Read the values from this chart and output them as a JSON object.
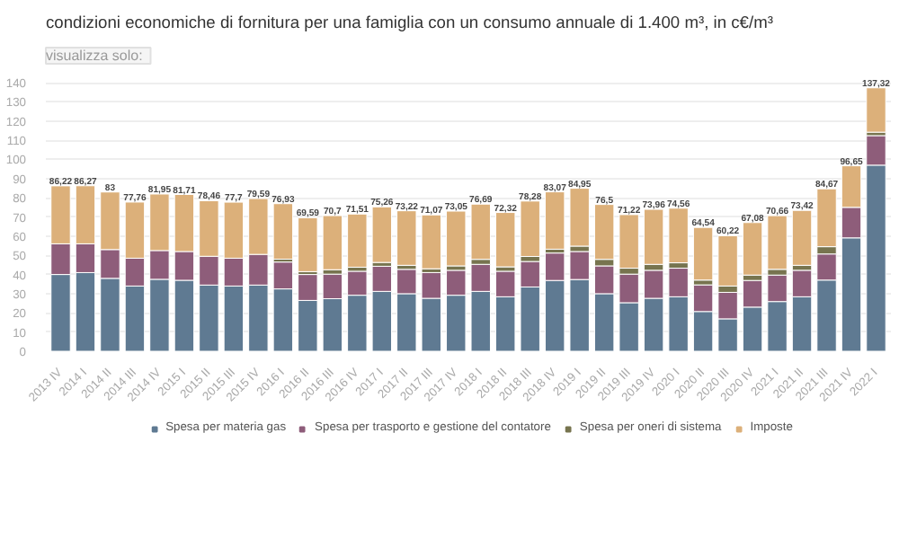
{
  "chart_data": {
    "type": "bar",
    "stacked": true,
    "title": "condizioni economiche di fornitura per una famiglia con un consumo annuale di 1.400 m³, in c€/m³",
    "annotations": [
      "visualizza solo:"
    ],
    "categories": [
      "2013 IV",
      "2014 I",
      "2014 II",
      "2014 III",
      "2014 IV",
      "2015 I",
      "2015 II",
      "2015 III",
      "2015 IV",
      "2016 I",
      "2016 II",
      "2016 III",
      "2016 IV",
      "2017 I",
      "2017 II",
      "2017 III",
      "2017 IV",
      "2018 I",
      "2018 II",
      "2018 III",
      "2018 IV",
      "2019 I",
      "2019 II",
      "2019 III",
      "2019 IV",
      "2020 I",
      "2020 II",
      "2020 III",
      "2020 IV",
      "2021 I",
      "2021 II",
      "2021 III",
      "2021 IV",
      "2022 I"
    ],
    "series": [
      {
        "name": "Spesa per materia gas",
        "color": "#5f7a92",
        "values": [
          40,
          41,
          38,
          34,
          37.5,
          37,
          34.5,
          34,
          34.5,
          32.5,
          26.5,
          27.4,
          29.2,
          31.2,
          30,
          27.6,
          29.2,
          31.2,
          28.4,
          33.5,
          36.9,
          37.4,
          30,
          25.3,
          27.6,
          28.4,
          20.7,
          16.9,
          23,
          25.9,
          28.4,
          37.1,
          59.1,
          97
        ]
      },
      {
        "name": "Spesa per trasporto e gestione del contatore",
        "color": "#8e5d7a",
        "values": [
          16,
          15,
          15,
          14.5,
          15,
          15,
          15,
          14.5,
          16,
          14,
          13.5,
          12.8,
          12.5,
          13.1,
          12.7,
          13.4,
          13,
          14.1,
          13.3,
          13.3,
          14.3,
          14.6,
          14.5,
          14.9,
          14.6,
          14.9,
          13.9,
          13.8,
          13.9,
          13.8,
          13.8,
          13.6,
          15.9,
          15.4
        ]
      },
      {
        "name": "Spesa per oneri di sistema",
        "color": "#77744f",
        "values": [
          null,
          null,
          null,
          null,
          null,
          null,
          null,
          null,
          null,
          1.5,
          1.5,
          2.3,
          2.1,
          2,
          2.1,
          2,
          2.3,
          2.6,
          2.3,
          2.6,
          2,
          2.8,
          3.4,
          3.1,
          3.1,
          2.8,
          2.5,
          3.3,
          2.8,
          3,
          2.6,
          3.8,
          null,
          1.8
        ]
      },
      {
        "name": "Imposte",
        "color": "#dcb07a",
        "values": [
          30.22,
          30.27,
          30,
          29.26,
          29.45,
          29.71,
          28.96,
          29.2,
          29.09,
          28.93,
          28.09,
          28.2,
          27.71,
          28.96,
          28.42,
          28.07,
          28.55,
          28.79,
          28.32,
          28.88,
          29.87,
          30.15,
          28.6,
          27.92,
          28.66,
          28.46,
          27.44,
          26.22,
          27.38,
          27.96,
          28.62,
          30.17,
          21.65,
          23.12
        ]
      }
    ],
    "totals": [
      "86,22",
      "86,27",
      "83",
      "77,76",
      "81,95",
      "81,71",
      "78,46",
      "77,7",
      "79,59",
      "76,93",
      "69,59",
      "70,7",
      "71,51",
      "75,26",
      "73,22",
      "71,07",
      "73,05",
      "76,69",
      "72,32",
      "78,28",
      "83,07",
      "84,95",
      "76,5",
      "71,22",
      "73,96",
      "74,56",
      "64,54",
      "60,22",
      "67,08",
      "70,66",
      "73,42",
      "84,67",
      "96,65",
      "137,32"
    ],
    "ylim": [
      0,
      140
    ],
    "yticks": [
      0,
      10,
      20,
      30,
      40,
      50,
      60,
      70,
      80,
      90,
      100,
      110,
      120,
      130,
      140
    ],
    "grid": "y",
    "legend": "bottom"
  }
}
